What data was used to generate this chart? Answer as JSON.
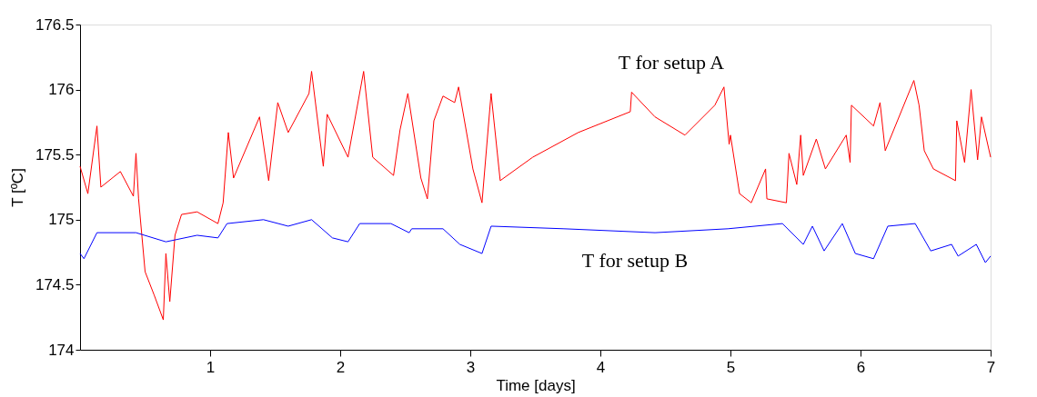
{
  "chart_data": {
    "type": "line",
    "xlabel": "Time [days]",
    "ylabel": "T [ºC]",
    "xlim": [
      0,
      7
    ],
    "ylim": [
      174,
      176.5
    ],
    "xticks": [
      1,
      2,
      3,
      4,
      5,
      6,
      7
    ],
    "yticks": [
      174,
      174.5,
      175,
      175.5,
      176,
      176.5
    ],
    "grid": false,
    "legend": false,
    "marker": "none",
    "line_style": "solid",
    "annotations": [
      "T for setup A",
      "T for setup B"
    ],
    "series": [
      {
        "color": "#ff0000",
        "x": [
          0,
          0.06,
          0.13,
          0.16,
          0.31,
          0.41,
          0.43,
          0.45,
          0.5,
          0.57,
          0.64,
          0.66,
          0.69,
          0.73,
          0.78,
          0.9,
          1.06,
          1.1,
          1.14,
          1.18,
          1.38,
          1.45,
          1.52,
          1.6,
          1.76,
          1.78,
          1.87,
          1.9,
          2.06,
          2.18,
          2.25,
          2.41,
          2.46,
          2.52,
          2.62,
          2.67,
          2.72,
          2.79,
          2.88,
          2.91,
          3.02,
          3.09,
          3.16,
          3.23,
          3.48,
          3.83,
          4.23,
          4.24,
          4.42,
          4.65,
          4.88,
          4.95,
          4.99,
          5.0,
          5.07,
          5.16,
          5.27,
          5.28,
          5.43,
          5.45,
          5.51,
          5.54,
          5.56,
          5.66,
          5.73,
          5.89,
          5.92,
          5.93,
          6.1,
          6.15,
          6.19,
          6.41,
          6.45,
          6.49,
          6.56,
          6.73,
          6.74,
          6.8,
          6.85,
          6.9,
          6.93,
          7.0
        ],
        "values": [
          175.41,
          175.2,
          175.72,
          175.25,
          175.37,
          175.18,
          175.51,
          175.16,
          174.6,
          174.42,
          174.23,
          174.74,
          174.37,
          174.88,
          175.04,
          175.06,
          174.97,
          175.13,
          175.67,
          175.32,
          175.79,
          175.3,
          175.9,
          175.67,
          175.97,
          176.14,
          175.41,
          175.81,
          175.48,
          176.14,
          175.48,
          175.34,
          175.69,
          175.97,
          175.32,
          175.16,
          175.76,
          175.95,
          175.9,
          176.02,
          175.39,
          175.13,
          175.97,
          175.3,
          175.48,
          175.67,
          175.83,
          175.98,
          175.79,
          175.65,
          175.88,
          176.02,
          175.58,
          175.65,
          175.2,
          175.13,
          175.39,
          175.16,
          175.13,
          175.51,
          175.27,
          175.65,
          175.34,
          175.62,
          175.39,
          175.65,
          175.44,
          175.88,
          175.72,
          175.9,
          175.53,
          176.07,
          175.88,
          175.53,
          175.39,
          175.3,
          175.76,
          175.44,
          176.0,
          175.46,
          175.79,
          175.48
        ]
      },
      {
        "color": "#0000ff",
        "x": [
          0,
          0.03,
          0.13,
          0.43,
          0.66,
          0.9,
          1.06,
          1.13,
          1.41,
          1.6,
          1.78,
          1.94,
          2.06,
          2.15,
          2.39,
          2.53,
          2.55,
          2.79,
          2.92,
          3.09,
          3.16,
          3.72,
          4.42,
          4.98,
          5.4,
          5.56,
          5.63,
          5.72,
          5.86,
          5.96,
          6.1,
          6.21,
          6.42,
          6.54,
          6.7,
          6.75,
          6.89,
          6.96,
          7.0
        ],
        "values": [
          174.74,
          174.7,
          174.9,
          174.9,
          174.83,
          174.88,
          174.86,
          174.97,
          175.0,
          174.95,
          175.0,
          174.86,
          174.83,
          174.97,
          174.97,
          174.9,
          174.93,
          174.93,
          174.81,
          174.74,
          174.95,
          174.93,
          174.9,
          174.93,
          174.97,
          174.81,
          174.95,
          174.76,
          174.97,
          174.74,
          174.7,
          174.95,
          174.97,
          174.76,
          174.81,
          174.72,
          174.81,
          174.67,
          174.72
        ]
      }
    ]
  }
}
